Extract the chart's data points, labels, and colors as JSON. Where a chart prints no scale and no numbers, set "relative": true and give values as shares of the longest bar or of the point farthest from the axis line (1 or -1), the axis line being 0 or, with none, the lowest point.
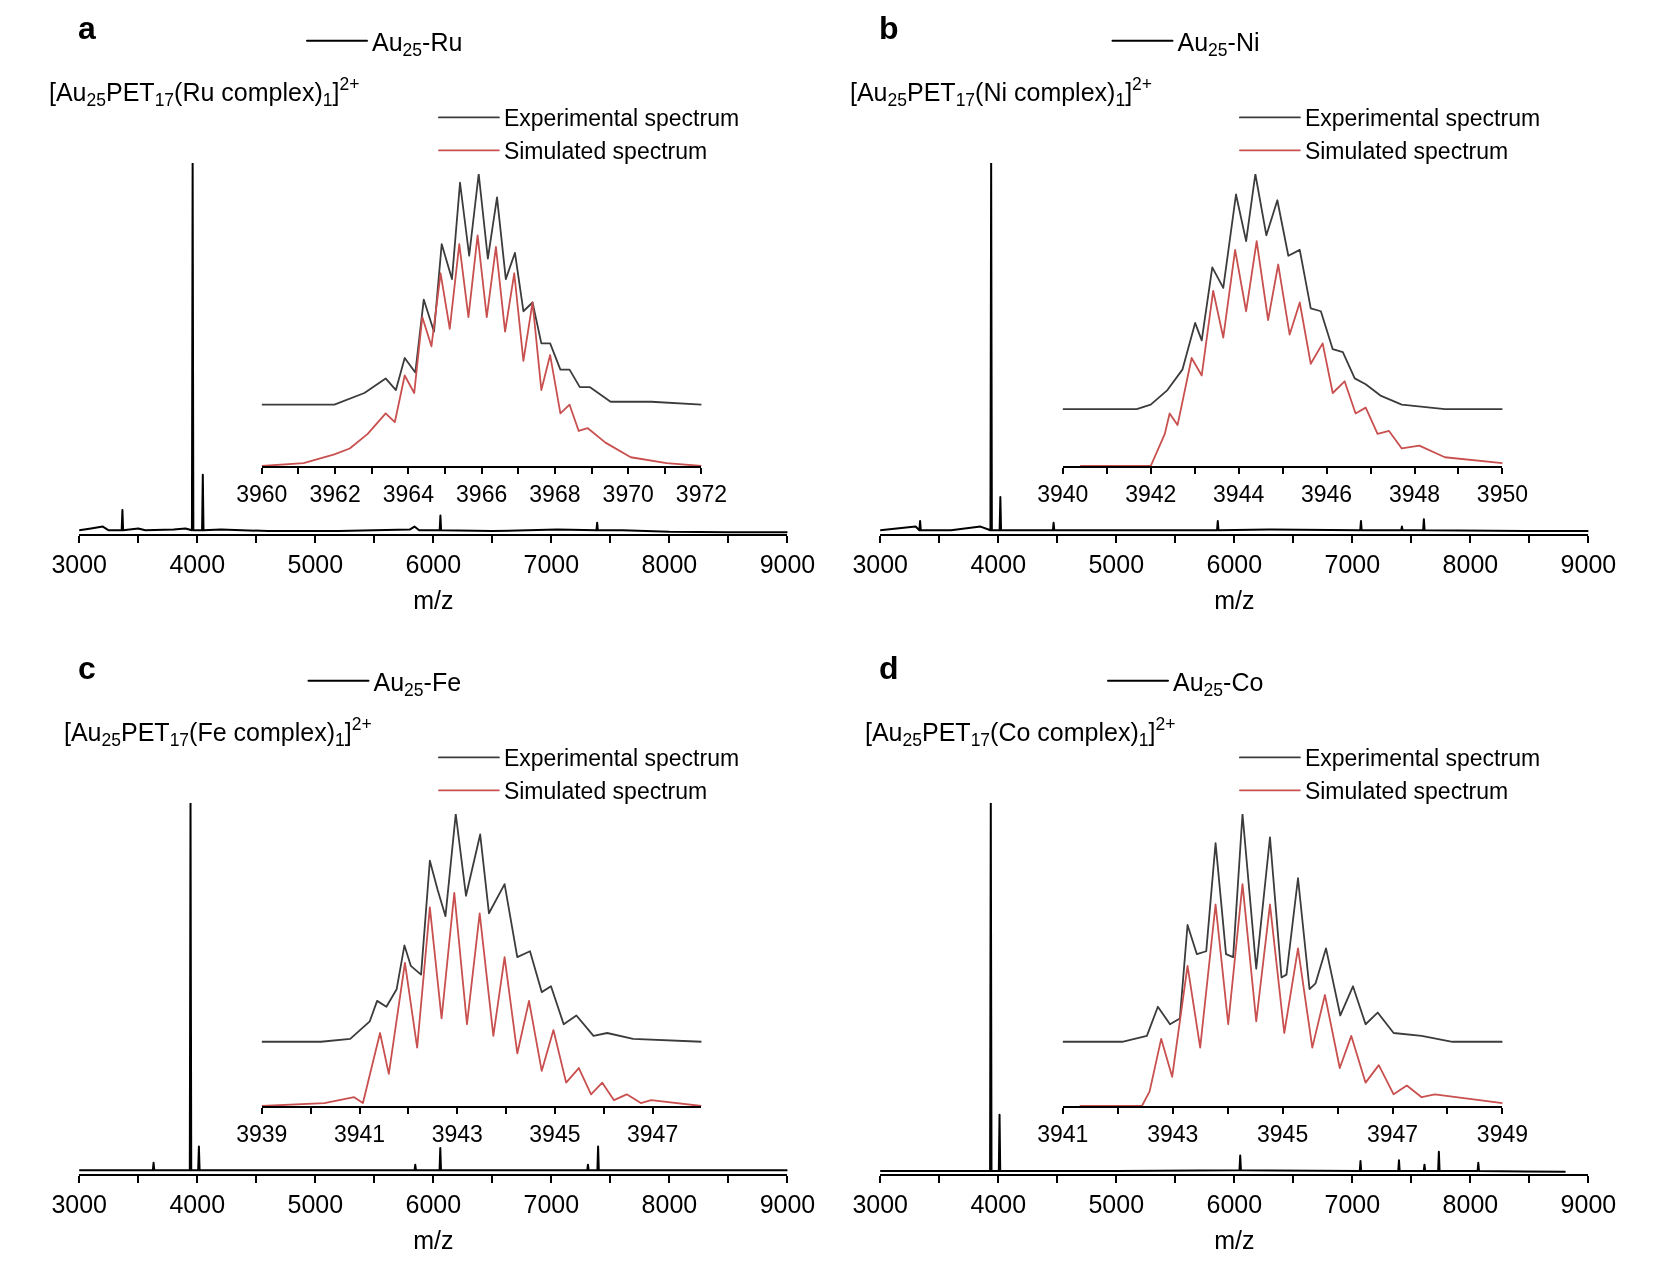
{
  "chart_data": [
    {
      "type": "line",
      "title": "a",
      "xlabel": "m/z",
      "relative": true,
      "legend": "top",
      "xlim": [
        3000,
        9000
      ],
      "xticks": [
        3000,
        {
          "value": 3500,
          "label": null
        },
        4000,
        {
          "value": 4500,
          "label": null
        },
        5000,
        {
          "value": 5500,
          "label": null
        },
        6000,
        {
          "value": 6500,
          "label": null
        },
        7000,
        {
          "value": 7500,
          "label": null
        },
        8000,
        {
          "value": 8500,
          "label": null
        },
        9000
      ],
      "annotations": [
        "[Au$_{25}$PET$_{17}$(Ru complex)$_{1}$]$^{2+}$"
      ],
      "series": [
        {
          "name": "Au$_{25}$-Ru",
          "color": "#000000",
          "x": [
            3000,
            3100,
            3200,
            3250,
            3360,
            3366,
            3372,
            3500,
            3560,
            3800,
            3900,
            3955,
            3961,
            3967,
            4041,
            4047,
            4053,
            4200,
            4600,
            5200,
            5800,
            5840,
            5880,
            6054,
            6060,
            6066,
            6500,
            7050,
            7382,
            7388,
            7394,
            7600,
            8000,
            8500,
            9000
          ],
          "values": [
            0.01,
            0.015,
            0.02,
            0.01,
            0.01,
            0.065,
            0.01,
            0.015,
            0.01,
            0.012,
            0.015,
            0.01,
            1,
            0.01,
            0.01,
            0.16,
            0.01,
            0.012,
            0.008,
            0.008,
            0.012,
            0.02,
            0.01,
            0.01,
            0.05,
            0.01,
            0.008,
            0.012,
            0.01,
            0.03,
            0.01,
            0.01,
            0.006,
            0.005,
            0.005
          ]
        }
      ]
    },
    {
      "type": "line",
      "relative": true,
      "legend": "top right",
      "xlim": [
        3960,
        3972
      ],
      "xticks": [
        3960,
        {
          "value": 3961,
          "label": null
        },
        3962,
        {
          "value": 3963,
          "label": null
        },
        3964,
        {
          "value": 3965,
          "label": null
        },
        3966,
        {
          "value": 3967,
          "label": null
        },
        3968,
        {
          "value": 3969,
          "label": null
        },
        3970,
        {
          "value": 3971,
          "label": null
        },
        3972
      ],
      "series": [
        {
          "name": "Experimental spectrum",
          "color": "#3c3c3c",
          "x": [
            3960,
            3961.98,
            3962.8,
            3963.38,
            3963.66,
            3963.9,
            3964.19,
            3964.42,
            3964.7,
            3964.91,
            3965.19,
            3965.41,
            3965.66,
            3965.92,
            3966.17,
            3966.42,
            3966.66,
            3966.91,
            3967.14,
            3967.39,
            3967.63,
            3967.87,
            3968.15,
            3968.4,
            3968.68,
            3968.96,
            3969.52,
            3970.63,
            3972
          ],
          "values": [
            0.21,
            0.21,
            0.25,
            0.3,
            0.26,
            0.37,
            0.32,
            0.57,
            0.46,
            0.76,
            0.64,
            0.97,
            0.72,
            1,
            0.71,
            0.92,
            0.64,
            0.73,
            0.53,
            0.56,
            0.42,
            0.42,
            0.33,
            0.33,
            0.27,
            0.27,
            0.22,
            0.22,
            0.21
          ]
        },
        {
          "name": "Simulated spectrum",
          "color": "#c8504f",
          "x": [
            3960,
            3961.14,
            3961.98,
            3962.4,
            3962.89,
            3963.38,
            3963.63,
            3963.9,
            3964.16,
            3964.38,
            3964.63,
            3964.88,
            3965.13,
            3965.39,
            3965.64,
            3965.89,
            3966.14,
            3966.39,
            3966.64,
            3966.89,
            3967.14,
            3967.39,
            3967.63,
            3967.87,
            3968.15,
            3968.4,
            3968.65,
            3968.89,
            3969.38,
            3970.07,
            3971.05,
            3972
          ],
          "values": [
            0,
            0.01,
            0.04,
            0.06,
            0.11,
            0.18,
            0.15,
            0.31,
            0.25,
            0.51,
            0.41,
            0.66,
            0.47,
            0.76,
            0.51,
            0.79,
            0.51,
            0.75,
            0.46,
            0.66,
            0.36,
            0.56,
            0.26,
            0.38,
            0.18,
            0.21,
            0.12,
            0.13,
            0.08,
            0.03,
            0.01,
            0
          ]
        }
      ]
    },
    {
      "type": "line",
      "title": "b",
      "xlabel": "m/z",
      "relative": true,
      "legend": "top",
      "xlim": [
        3000,
        9000
      ],
      "xticks": [
        3000,
        {
          "value": 3500,
          "label": null
        },
        4000,
        {
          "value": 4500,
          "label": null
        },
        5000,
        {
          "value": 5500,
          "label": null
        },
        6000,
        {
          "value": 6500,
          "label": null
        },
        7000,
        {
          "value": 7500,
          "label": null
        },
        8000,
        {
          "value": 8500,
          "label": null
        },
        9000
      ],
      "annotations": [
        "[Au$_{25}$PET$_{17}$(Ni complex)$_{1}$]$^{2+}$"
      ],
      "series": [
        {
          "name": "Au$_{25}$-Ni",
          "color": "#000000",
          "x": [
            3000,
            3300,
            3332,
            3338,
            3344,
            3600,
            3850,
            3934,
            3940,
            3946,
            4012,
            4018,
            4024,
            4463,
            4469,
            4475,
            5000,
            5854,
            5860,
            5866,
            6300,
            7067,
            7073,
            7079,
            7414,
            7420,
            7426,
            7600,
            7606,
            7612,
            8500,
            9000
          ],
          "values": [
            0.01,
            0.02,
            0.01,
            0.035,
            0.01,
            0.01,
            0.02,
            0.01,
            1,
            0.01,
            0.01,
            0.1,
            0.01,
            0.01,
            0.03,
            0.01,
            0.01,
            0.01,
            0.035,
            0.01,
            0.012,
            0.01,
            0.035,
            0.01,
            0.01,
            0.02,
            0.01,
            0.01,
            0.04,
            0.01,
            0.008,
            0.008
          ]
        }
      ]
    },
    {
      "type": "line",
      "relative": true,
      "legend": "top right",
      "xlim": [
        3940,
        3950
      ],
      "xticks": [
        3940,
        {
          "value": 3941,
          "label": null
        },
        3942,
        {
          "value": 3943,
          "label": null
        },
        3944,
        {
          "value": 3945,
          "label": null
        },
        3946,
        {
          "value": 3947,
          "label": null
        },
        3948,
        {
          "value": 3949,
          "label": null
        },
        3950
      ],
      "series": [
        {
          "name": "Experimental spectrum",
          "color": "#3c3c3c",
          "x": [
            3940,
            3941.68,
            3942.0,
            3942.38,
            3942.72,
            3943.01,
            3943.16,
            3943.4,
            3943.65,
            3943.94,
            3944.17,
            3944.38,
            3944.63,
            3944.88,
            3945.13,
            3945.39,
            3945.64,
            3945.87,
            3946.14,
            3946.37,
            3946.64,
            3946.89,
            3947.24,
            3947.71,
            3948.69,
            3950
          ],
          "values": [
            0.195,
            0.195,
            0.21,
            0.26,
            0.33,
            0.49,
            0.43,
            0.68,
            0.61,
            0.93,
            0.77,
            1,
            0.79,
            0.91,
            0.72,
            0.74,
            0.54,
            0.53,
            0.4,
            0.39,
            0.3,
            0.28,
            0.24,
            0.21,
            0.195,
            0.195
          ]
        },
        {
          "name": "Simulated spectrum",
          "color": "#c8504f",
          "x": [
            3940.41,
            3942.0,
            3942.32,
            3942.43,
            3942.61,
            3942.93,
            3943.16,
            3943.42,
            3943.65,
            3943.92,
            3944.17,
            3944.41,
            3944.67,
            3944.9,
            3945.16,
            3945.39,
            3945.64,
            3945.91,
            3946.14,
            3946.41,
            3946.66,
            3946.89,
            3947.16,
            3947.42,
            3947.71,
            3948.11,
            3948.69,
            3950
          ],
          "values": [
            0,
            0,
            0.11,
            0.18,
            0.14,
            0.37,
            0.31,
            0.6,
            0.44,
            0.74,
            0.53,
            0.77,
            0.5,
            0.69,
            0.45,
            0.56,
            0.35,
            0.42,
            0.25,
            0.29,
            0.18,
            0.2,
            0.11,
            0.12,
            0.06,
            0.07,
            0.03,
            0.01
          ]
        }
      ]
    },
    {
      "type": "line",
      "title": "c",
      "xlabel": "m/z",
      "relative": true,
      "legend": "top",
      "xlim": [
        3000,
        9000
      ],
      "xticks": [
        3000,
        {
          "value": 3500,
          "label": null
        },
        4000,
        {
          "value": 4500,
          "label": null
        },
        5000,
        {
          "value": 5500,
          "label": null
        },
        6000,
        {
          "value": 6500,
          "label": null
        },
        7000,
        {
          "value": 7500,
          "label": null
        },
        8000,
        {
          "value": 8500,
          "label": null
        },
        9000
      ],
      "annotations": [
        "[Au$_{25}$PET$_{17}$(Fe complex)$_{1}$]$^{2+}$"
      ],
      "series": [
        {
          "name": "Au$_{25}$-Fe",
          "color": "#000000",
          "x": [
            3000,
            3600,
            3624,
            3630,
            3636,
            3937,
            3943,
            3949,
            4008,
            4014,
            4020,
            5000,
            5841,
            5847,
            5853,
            6053,
            6059,
            6065,
            7000,
            7304,
            7310,
            7316,
            7390,
            7396,
            7402,
            8400,
            9000
          ],
          "values": [
            0.01,
            0.01,
            0.01,
            0.03,
            0.01,
            0.01,
            1,
            0.01,
            0.01,
            0.074,
            0.01,
            0.01,
            0.01,
            0.025,
            0.01,
            0.01,
            0.07,
            0.01,
            0.01,
            0.01,
            0.025,
            0.01,
            0.01,
            0.074,
            0.01,
            0.01,
            0.01
          ]
        }
      ]
    },
    {
      "type": "line",
      "relative": true,
      "legend": "top right",
      "xlim": [
        3939,
        3948
      ],
      "xticks": [
        3939,
        {
          "value": 3940,
          "label": null
        },
        3941,
        {
          "value": 3942,
          "label": null
        },
        3943,
        {
          "value": 3944,
          "label": null
        },
        3945,
        {
          "value": 3946,
          "label": null
        },
        3947
      ],
      "series": [
        {
          "name": "Experimental spectrum",
          "color": "#3c3c3c",
          "x": [
            3939,
            3940.21,
            3940.81,
            3941.21,
            3941.36,
            3941.55,
            3941.76,
            3941.92,
            3942.05,
            3942.26,
            3942.44,
            3942.6,
            3942.76,
            3942.97,
            3943.18,
            3943.47,
            3943.65,
            3943.97,
            3944.23,
            3944.49,
            3944.73,
            3944.92,
            3945.18,
            3945.44,
            3945.79,
            3946.07,
            3946.6,
            3948
          ],
          "values": [
            0.22,
            0.22,
            0.23,
            0.29,
            0.36,
            0.34,
            0.4,
            0.55,
            0.48,
            0.45,
            0.84,
            0.74,
            0.65,
            1,
            0.72,
            0.93,
            0.66,
            0.76,
            0.51,
            0.53,
            0.39,
            0.41,
            0.28,
            0.31,
            0.24,
            0.25,
            0.23,
            0.22
          ]
        },
        {
          "name": "Simulated spectrum",
          "color": "#c8504f",
          "x": [
            3939,
            3940.28,
            3940.89,
            3941.07,
            3941.42,
            3941.6,
            3941.93,
            3942.18,
            3942.44,
            3942.68,
            3942.94,
            3943.2,
            3943.46,
            3943.74,
            3943.97,
            3944.23,
            3944.47,
            3944.73,
            3944.97,
            3945.23,
            3945.49,
            3945.74,
            3945.97,
            3946.21,
            3946.47,
            3946.76,
            3946.97,
            3948
          ],
          "values": [
            0,
            0.01,
            0.03,
            0.01,
            0.25,
            0.11,
            0.49,
            0.2,
            0.68,
            0.3,
            0.73,
            0.28,
            0.66,
            0.24,
            0.51,
            0.18,
            0.36,
            0.12,
            0.26,
            0.08,
            0.13,
            0.04,
            0.08,
            0.02,
            0.04,
            0.01,
            0.02,
            0
          ]
        }
      ]
    },
    {
      "type": "line",
      "title": "d",
      "xlabel": "m/z",
      "relative": true,
      "legend": "top",
      "xlim": [
        3000,
        9000
      ],
      "xticks": [
        3000,
        {
          "value": 3500,
          "label": null
        },
        4000,
        {
          "value": 4500,
          "label": null
        },
        5000,
        {
          "value": 5500,
          "label": null
        },
        6000,
        {
          "value": 6500,
          "label": null
        },
        7000,
        {
          "value": 7500,
          "label": null
        },
        8000,
        {
          "value": 8500,
          "label": null
        },
        9000
      ],
      "annotations": [
        "[Au$_{25}$PET$_{17}$(Co complex)$_{1}$]$^{2+}$"
      ],
      "series": [
        {
          "name": "Au$_{25}$-Co",
          "color": "#000000",
          "x": [
            3000,
            3500,
            3931,
            3937,
            3943,
            4005,
            4011,
            4017,
            5000,
            6044,
            6050,
            6056,
            7063,
            7069,
            7075,
            7389,
            7395,
            7401,
            7605,
            7611,
            7617,
            7727,
            7733,
            7739,
            8061,
            8067,
            8073,
            8800
          ],
          "values": [
            0.008,
            0.008,
            0.008,
            1,
            0.008,
            0.008,
            0.16,
            0.008,
            0.008,
            0.01,
            0.05,
            0.01,
            0.008,
            0.035,
            0.008,
            0.008,
            0.037,
            0.008,
            0.008,
            0.025,
            0.008,
            0.008,
            0.06,
            0.008,
            0.008,
            0.03,
            0.008,
            0.006
          ]
        }
      ]
    },
    {
      "type": "line",
      "relative": true,
      "legend": "top right",
      "xlim": [
        3941,
        3949
      ],
      "xticks": [
        3941,
        {
          "value": 3942,
          "label": null
        },
        3943,
        {
          "value": 3944,
          "label": null
        },
        3945,
        {
          "value": 3946,
          "label": null
        },
        3947,
        {
          "value": 3948,
          "label": null
        },
        3949
      ],
      "series": [
        {
          "name": "Experimental spectrum",
          "color": "#3c3c3c",
          "x": [
            3941,
            3942.08,
            3942.53,
            3942.73,
            3942.95,
            3943.13,
            3943.27,
            3943.44,
            3943.61,
            3943.78,
            3943.97,
            3944.1,
            3944.27,
            3944.52,
            3944.77,
            3944.98,
            3945.07,
            3945.28,
            3945.49,
            3945.6,
            3945.79,
            3946.05,
            3946.28,
            3946.51,
            3946.73,
            3947.02,
            3947.53,
            3948.09,
            3949
          ],
          "values": [
            0.22,
            0.22,
            0.24,
            0.34,
            0.28,
            0.3,
            0.62,
            0.52,
            0.53,
            0.9,
            0.52,
            0.51,
            1,
            0.47,
            0.92,
            0.44,
            0.45,
            0.78,
            0.4,
            0.42,
            0.54,
            0.31,
            0.41,
            0.28,
            0.32,
            0.25,
            0.24,
            0.22,
            0.22
          ]
        },
        {
          "name": "Simulated spectrum",
          "color": "#c8504f",
          "x": [
            3941.32,
            3942.44,
            3942.58,
            3942.79,
            3942.99,
            3943.27,
            3943.5,
            3943.78,
            3944.01,
            3944.27,
            3944.52,
            3944.77,
            3945.03,
            3945.28,
            3945.54,
            3945.77,
            3946.04,
            3946.25,
            3946.51,
            3946.75,
            3947.02,
            3947.26,
            3947.53,
            3947.77,
            3949
          ],
          "values": [
            0,
            0,
            0.05,
            0.23,
            0.1,
            0.48,
            0.2,
            0.69,
            0.28,
            0.76,
            0.29,
            0.69,
            0.25,
            0.54,
            0.2,
            0.38,
            0.13,
            0.24,
            0.08,
            0.14,
            0.04,
            0.07,
            0.03,
            0.04,
            0.01
          ]
        }
      ]
    }
  ]
}
